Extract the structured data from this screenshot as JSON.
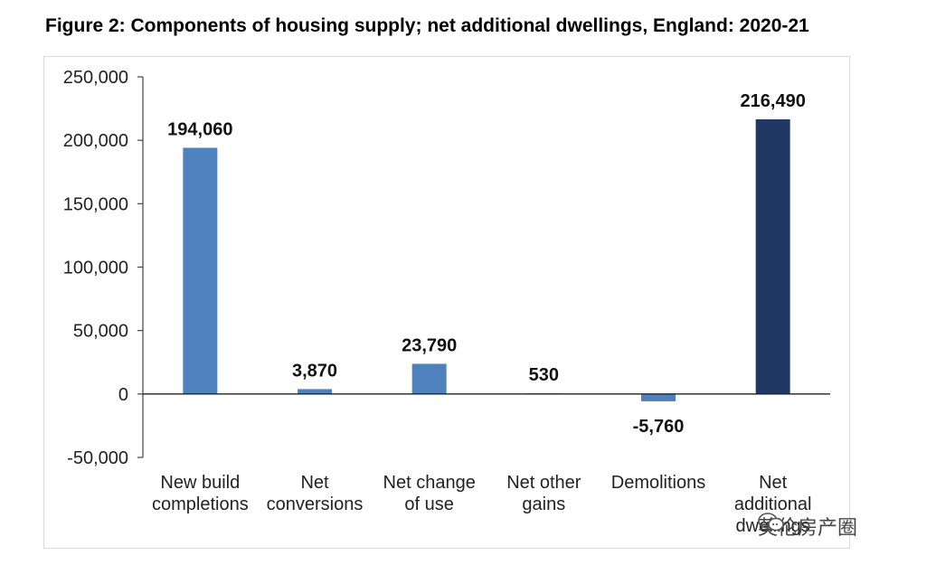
{
  "title": "Figure 2: Components of housing supply; net additional dwellings, England: 2020-21",
  "watermark": {
    "text": "英伦房产圈",
    "icon": "chat-bubbles-icon"
  },
  "chart_data": {
    "type": "bar",
    "title": "Figure 2: Components of housing supply; net additional dwellings, England: 2020-21",
    "xlabel": "",
    "ylabel": "",
    "ylim": [
      -50000,
      250000
    ],
    "yticks": [
      250000,
      200000,
      150000,
      100000,
      50000,
      0,
      -50000
    ],
    "ytick_labels": [
      "250,000",
      "200,000",
      "150,000",
      "100,000",
      "50,000",
      "0",
      "-50,000"
    ],
    "grid": false,
    "legend": "none",
    "categories": [
      [
        "New build",
        "completions"
      ],
      [
        "Net",
        "conversions"
      ],
      [
        "Net change",
        "of use"
      ],
      [
        "Net other",
        "gains"
      ],
      [
        "Demolitions"
      ],
      [
        "Net",
        "additional",
        "dwellings"
      ]
    ],
    "values": [
      194060,
      3870,
      23790,
      530,
      -5760,
      216490
    ],
    "value_labels": [
      "194,060",
      "3,870",
      "23,790",
      "530",
      "-5,760",
      "216,490"
    ],
    "colors": [
      "#4f81bd",
      "#4f81bd",
      "#4f81bd",
      "#4f81bd",
      "#4f81bd",
      "#1f3864"
    ]
  }
}
